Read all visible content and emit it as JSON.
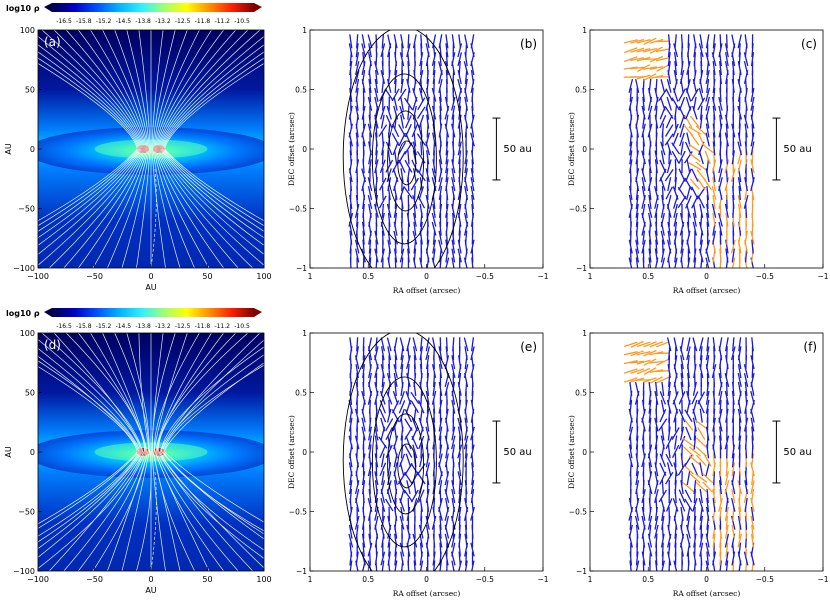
{
  "colorbar": {
    "label": "log10 ρ",
    "ticks": [
      "-16.5",
      "-15.8",
      "-15.2",
      "-14.5",
      "-13.8",
      "-13.2",
      "-12.5",
      "-11.8",
      "-11.2",
      "-10.5"
    ],
    "colors": [
      "#00004a",
      "#0000c8",
      "#0050ff",
      "#00b4ff",
      "#30f0ff",
      "#a0ff70",
      "#ffff00",
      "#ff9000",
      "#ff2000",
      "#800000"
    ]
  },
  "chart_data": [
    {
      "panel": "(a)",
      "type": "heatmap",
      "xlabel": "AU",
      "ylabel": "AU",
      "xlim": [
        -100,
        100
      ],
      "ylim": [
        -100,
        100
      ],
      "xticks": [
        "−100",
        "−50",
        "0",
        "50",
        "100"
      ],
      "yticks": [
        "100",
        "50",
        "0",
        "−50",
        "−100"
      ],
      "field": "log10 density with magnetic field lines (white)"
    },
    {
      "panel": "(b)",
      "type": "scatter",
      "xlabel": "RA offset (arcsec)",
      "ylabel": "DEC offset (arcsec)",
      "xlim": [
        1,
        -1
      ],
      "ylim": [
        -1,
        1
      ],
      "xticks": [
        "1",
        "0.5",
        "0",
        "−0.5",
        "−1"
      ],
      "yticks": [
        "1",
        "0.5",
        "0",
        "−0.5",
        "−1"
      ],
      "scalebar": "50 au",
      "vector_color": "#1a1adc",
      "contours": "black intensity contours"
    },
    {
      "panel": "(c)",
      "type": "scatter",
      "xlabel": "RA offset (arcsec)",
      "ylabel": "DEC offset (arcsec)",
      "xlim": [
        1,
        -1
      ],
      "ylim": [
        -1,
        1
      ],
      "xticks": [
        "1",
        "0.5",
        "0",
        "−0.5",
        "−1"
      ],
      "yticks": [
        "1",
        "0.5",
        "0",
        "−0.5",
        "−1"
      ],
      "scalebar": "50 au",
      "vector_colors": [
        "#1a1adc",
        "#ff9a20"
      ]
    },
    {
      "panel": "(d)",
      "type": "heatmap",
      "xlabel": "AU",
      "ylabel": "AU",
      "xlim": [
        -100,
        100
      ],
      "ylim": [
        -100,
        100
      ],
      "xticks": [
        "−100",
        "−50",
        "0",
        "50",
        "100"
      ],
      "yticks": [
        "100",
        "50",
        "0",
        "−50",
        "−100"
      ]
    },
    {
      "panel": "(e)",
      "type": "scatter",
      "xlabel": "RA offset (arcsec)",
      "ylabel": "DEC offset (arcsec)",
      "xlim": [
        1,
        -1
      ],
      "ylim": [
        -1,
        1
      ],
      "xticks": [
        "1",
        "0.5",
        "0",
        "−0.5",
        "−1"
      ],
      "yticks": [
        "1",
        "0.5",
        "0",
        "−0.5",
        "−1"
      ],
      "scalebar": "50 au"
    },
    {
      "panel": "(f)",
      "type": "scatter",
      "xlabel": "RA offset (arcsec)",
      "ylabel": "DEC offset (arcsec)",
      "xlim": [
        1,
        -1
      ],
      "ylim": [
        -1,
        1
      ],
      "xticks": [
        "1",
        "0.5",
        "0",
        "−0.5",
        "−1"
      ],
      "yticks": [
        "1",
        "0.5",
        "0",
        "−0.5",
        "−1"
      ],
      "scalebar": "50 au"
    }
  ]
}
